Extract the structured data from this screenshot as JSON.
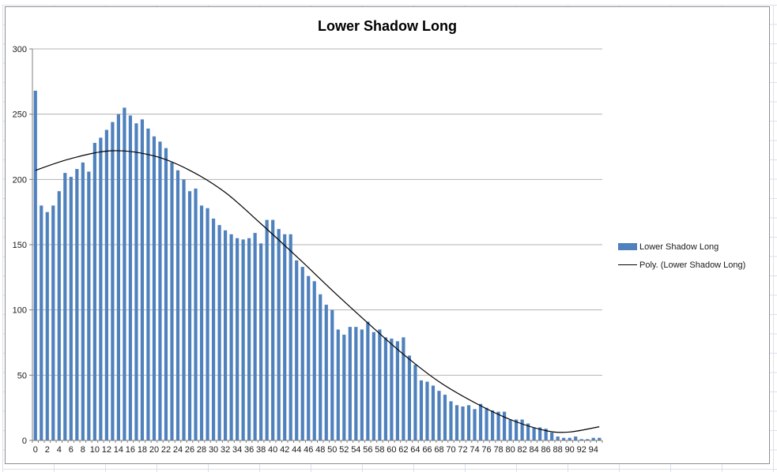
{
  "chart": {
    "title": "Lower Shadow Long",
    "legend": [
      {
        "label": "Lower Shadow Long",
        "swatch": "bar",
        "color": "#4f81bd"
      },
      {
        "label": "Poly. (Lower Shadow Long)",
        "swatch": "line",
        "color": "#000000"
      }
    ]
  },
  "chart_data": {
    "type": "bar",
    "title": "Lower Shadow Long",
    "series": [
      {
        "name": "Lower Shadow Long",
        "type": "bar",
        "color": "#4f81bd",
        "values": [
          268,
          180,
          175,
          180,
          191,
          205,
          202,
          208,
          213,
          206,
          228,
          232,
          238,
          244,
          250,
          255,
          249,
          243,
          246,
          239,
          233,
          229,
          224,
          213,
          207,
          200,
          191,
          193,
          180,
          178,
          170,
          165,
          161,
          158,
          155,
          154,
          155,
          159,
          151,
          169,
          169,
          162,
          158,
          158,
          138,
          133,
          126,
          122,
          112,
          104,
          100,
          85,
          81,
          87,
          87,
          85,
          91,
          83,
          85,
          79,
          78,
          76,
          79,
          65,
          58,
          46,
          45,
          42,
          38,
          35,
          30,
          27,
          26,
          27,
          24,
          28,
          25,
          23,
          22,
          22,
          16,
          16,
          16,
          13,
          10,
          10,
          9,
          6,
          3,
          2,
          2,
          3,
          1,
          1,
          2,
          2
        ]
      },
      {
        "name": "Poly. (Lower Shadow Long)",
        "type": "line",
        "color": "#000000",
        "points": [
          [
            0,
            207
          ],
          [
            6,
            216
          ],
          [
            13,
            222
          ],
          [
            20,
            218
          ],
          [
            26,
            207
          ],
          [
            32,
            190
          ],
          [
            38,
            166
          ],
          [
            44,
            141
          ],
          [
            50,
            115
          ],
          [
            56,
            90
          ],
          [
            62,
            66
          ],
          [
            68,
            45
          ],
          [
            74,
            29
          ],
          [
            80,
            16
          ],
          [
            86,
            7.5
          ],
          [
            90,
            6.5
          ],
          [
            95,
            10.5
          ]
        ]
      }
    ],
    "x_categories_start": 0,
    "x_categories_step": 1,
    "x_tick_labels": [
      "0",
      "2",
      "4",
      "6",
      "8",
      "10",
      "12",
      "14",
      "16",
      "18",
      "20",
      "22",
      "24",
      "26",
      "28",
      "30",
      "32",
      "34",
      "36",
      "38",
      "40",
      "42",
      "44",
      "46",
      "48",
      "50",
      "52",
      "54",
      "56",
      "58",
      "60",
      "62",
      "64",
      "66",
      "68",
      "70",
      "72",
      "74",
      "76",
      "78",
      "80",
      "82",
      "84",
      "86",
      "88",
      "90",
      "92",
      "94"
    ],
    "y_ticks": [
      0,
      50,
      100,
      150,
      200,
      250,
      300
    ],
    "ylim": [
      0,
      300
    ],
    "xlabel": "",
    "ylabel": "",
    "grid": true,
    "legend_position": "right"
  },
  "colors": {
    "bar_fill": "#4f81bd",
    "trendline": "#000000",
    "gridline": "#b3b3b3",
    "axis_line": "#7f7f7f",
    "chart_border": "#8f8f8f",
    "sheet_gridline": "#d9e0ec"
  }
}
